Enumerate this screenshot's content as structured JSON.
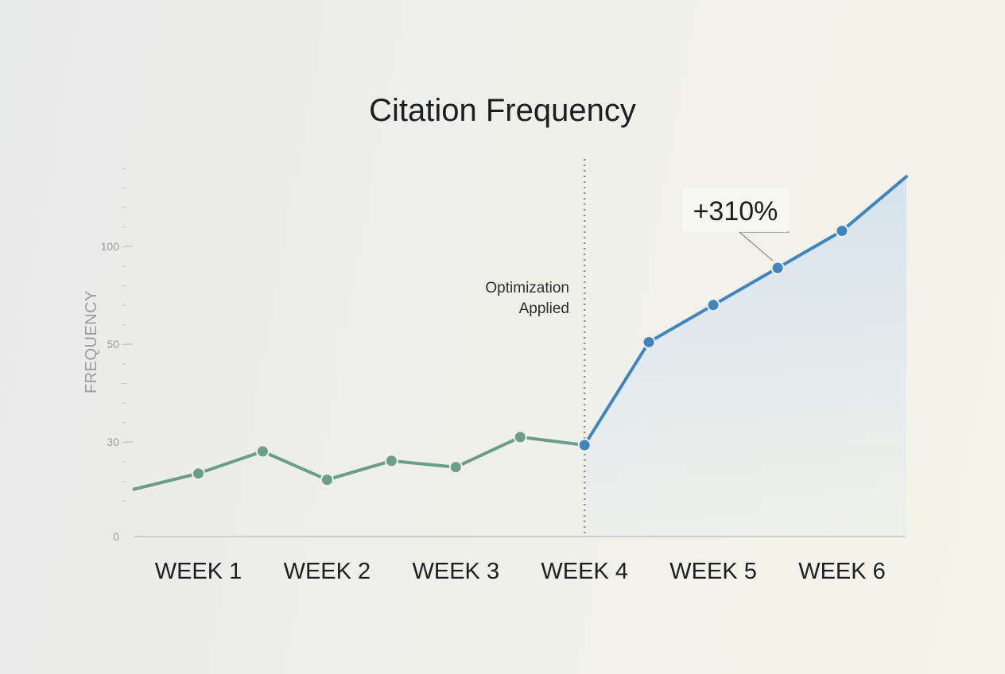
{
  "chart_data": {
    "type": "line",
    "title": "Citation Frequency",
    "ylabel": "FREQUENCY",
    "xlabel": "",
    "categories": [
      "WEEK 1",
      "WEEK 2",
      "WEEK 3",
      "WEEK 4",
      "WEEK 5",
      "WEEK 6"
    ],
    "y_ticks": [
      {
        "value": 0,
        "label": "0"
      },
      {
        "value": 30,
        "label": "30"
      },
      {
        "value": 50,
        "label": "50"
      },
      {
        "value": 100,
        "label": "100"
      }
    ],
    "series": [
      {
        "segment": "before",
        "color": "#6b9e8a",
        "x": [
          0.5,
          1,
          1.5,
          2,
          2.5,
          3,
          3.5,
          4
        ],
        "y": [
          15,
          20,
          27,
          18,
          24,
          22,
          31,
          29
        ]
      },
      {
        "segment": "after",
        "color": "#3f86bf",
        "x": [
          4,
          4.5,
          5,
          5.5,
          6,
          6.5
        ],
        "y": [
          29,
          51,
          70,
          89,
          108,
          136
        ]
      }
    ],
    "annotations": {
      "vline_x": 4,
      "vline_label_line1": "Optimization",
      "vline_label_line2": "Applied",
      "callout_text": "+310%",
      "callout_point": {
        "x": 5.5,
        "y": 89
      }
    },
    "grid": false
  },
  "colors": {
    "before_line": "#6b9e8a",
    "after_line": "#3f86bf",
    "area_fill": "#d8e4ee",
    "axis": "#b9bbbb"
  }
}
